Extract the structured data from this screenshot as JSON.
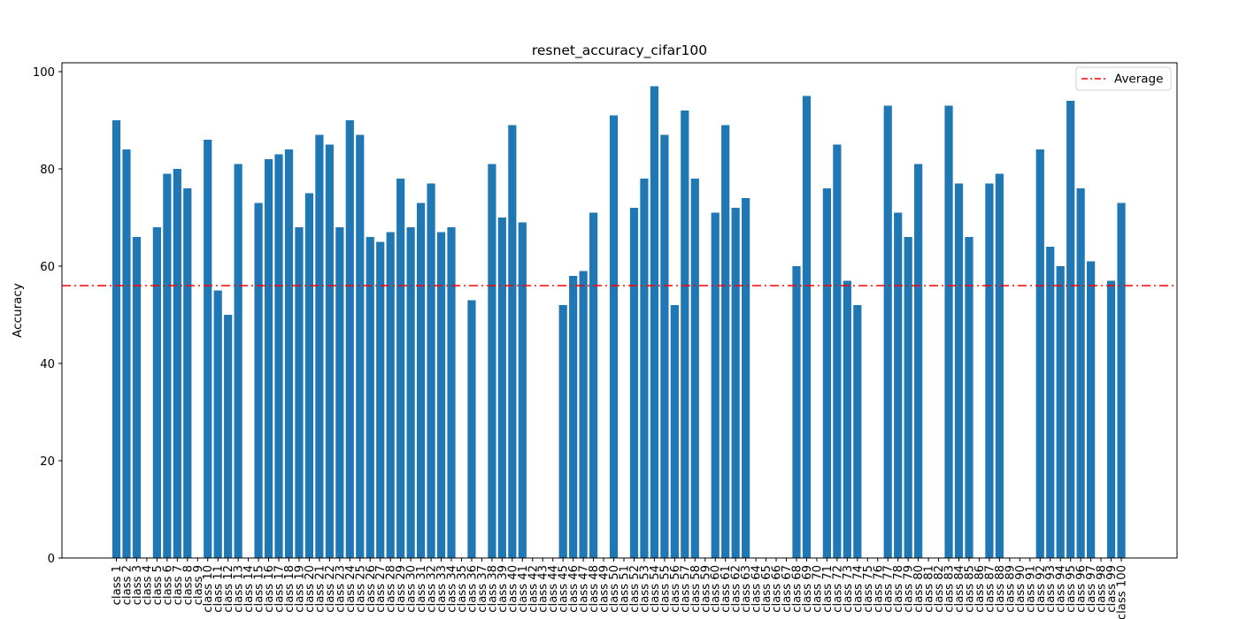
{
  "chart_data": {
    "type": "bar",
    "title": "resnet_accuracy_cifar100",
    "xlabel": "",
    "ylabel": "Accuracy",
    "ylim": [
      0,
      101
    ],
    "yticks": [
      0,
      20,
      40,
      60,
      80,
      100
    ],
    "grid": false,
    "bar_color": "#1f77b4",
    "categories": [
      "class 1",
      "class 2",
      "class 3",
      "class 4",
      "class 5",
      "class 6",
      "class 7",
      "class 8",
      "class 9",
      "class 10",
      "class 11",
      "class 12",
      "class 13",
      "class 14",
      "class 15",
      "class 16",
      "class 17",
      "class 18",
      "class 19",
      "class 20",
      "class 21",
      "class 22",
      "class 23",
      "class 24",
      "class 25",
      "class 26",
      "class 27",
      "class 28",
      "class 29",
      "class 30",
      "class 31",
      "class 32",
      "class 33",
      "class 34",
      "class 35",
      "class 36",
      "class 37",
      "class 38",
      "class 39",
      "class 40",
      "class 41",
      "class 42",
      "class 43",
      "class 44",
      "class 45",
      "class 46",
      "class 47",
      "class 48",
      "class 49",
      "class 50",
      "class 51",
      "class 52",
      "class 53",
      "class 54",
      "class 55",
      "class 56",
      "class 57",
      "class 58",
      "class 59",
      "class 60",
      "class 61",
      "class 62",
      "class 63",
      "class 64",
      "class 65",
      "class 66",
      "class 67",
      "class 68",
      "class 69",
      "class 70",
      "class 71",
      "class 72",
      "class 73",
      "class 74",
      "class 75",
      "class 76",
      "class 77",
      "class 78",
      "class 79",
      "class 80",
      "class 81",
      "class 82",
      "class 83",
      "class 84",
      "class 85",
      "class 86",
      "class 87",
      "class 88",
      "class 89",
      "class 90",
      "class 91",
      "class 92",
      "class 93",
      "class 94",
      "class 95",
      "class 96",
      "class 97",
      "class 98",
      "class 99",
      "class 100"
    ],
    "values": [
      90,
      84,
      66,
      0,
      68,
      79,
      80,
      76,
      0,
      86,
      55,
      50,
      81,
      0,
      73,
      82,
      83,
      84,
      68,
      75,
      87,
      85,
      68,
      90,
      87,
      66,
      65,
      67,
      78,
      68,
      73,
      77,
      67,
      68,
      0,
      53,
      0,
      81,
      70,
      89,
      69,
      0,
      0,
      0,
      52,
      58,
      59,
      71,
      0,
      91,
      0,
      72,
      78,
      97,
      87,
      52,
      92,
      78,
      0,
      71,
      89,
      72,
      74,
      0,
      0,
      0,
      0,
      60,
      95,
      0,
      76,
      85,
      57,
      52,
      0,
      0,
      93,
      71,
      66,
      81,
      0,
      0,
      93,
      77,
      66,
      0,
      77,
      79,
      0,
      0,
      0,
      84,
      64,
      60,
      94,
      76,
      61,
      0,
      57,
      73
    ],
    "reference_line": {
      "name": "Average",
      "value": 56,
      "color": "#ff0000",
      "style": "dash-dot"
    },
    "legend": {
      "position": "top-right",
      "entries": [
        "Average"
      ]
    }
  }
}
